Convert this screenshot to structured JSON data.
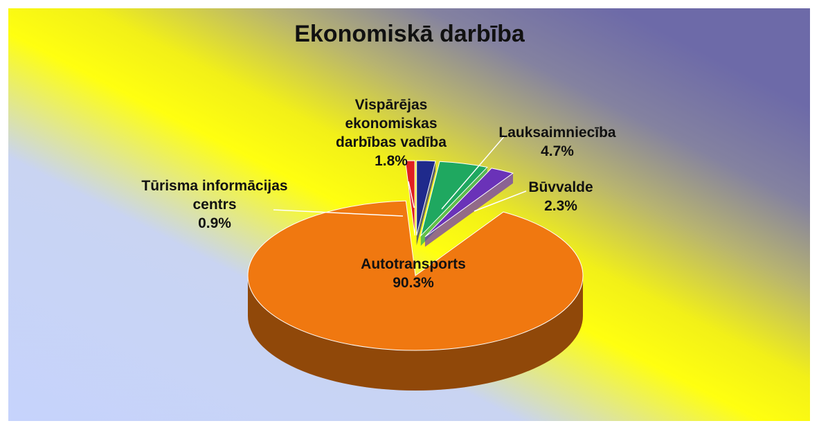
{
  "chart_data": {
    "type": "pie",
    "title": "Ekonomiskā darbība",
    "categories": [
      "Vispārējas ekonomiskas darbības vadība",
      "Lauksaimniecība",
      "Būvvalde",
      "Autotransports",
      "Tūrisma informācijas centrs"
    ],
    "values": [
      1.8,
      4.7,
      2.3,
      90.3,
      0.9
    ],
    "value_labels": [
      "1.8%",
      "4.7%",
      "2.3%",
      "90.3%",
      "0.9%"
    ],
    "colors": [
      "#1f2a8c",
      "#1fa860",
      "#6a32b8",
      "#f07810",
      "#e02020"
    ]
  }
}
